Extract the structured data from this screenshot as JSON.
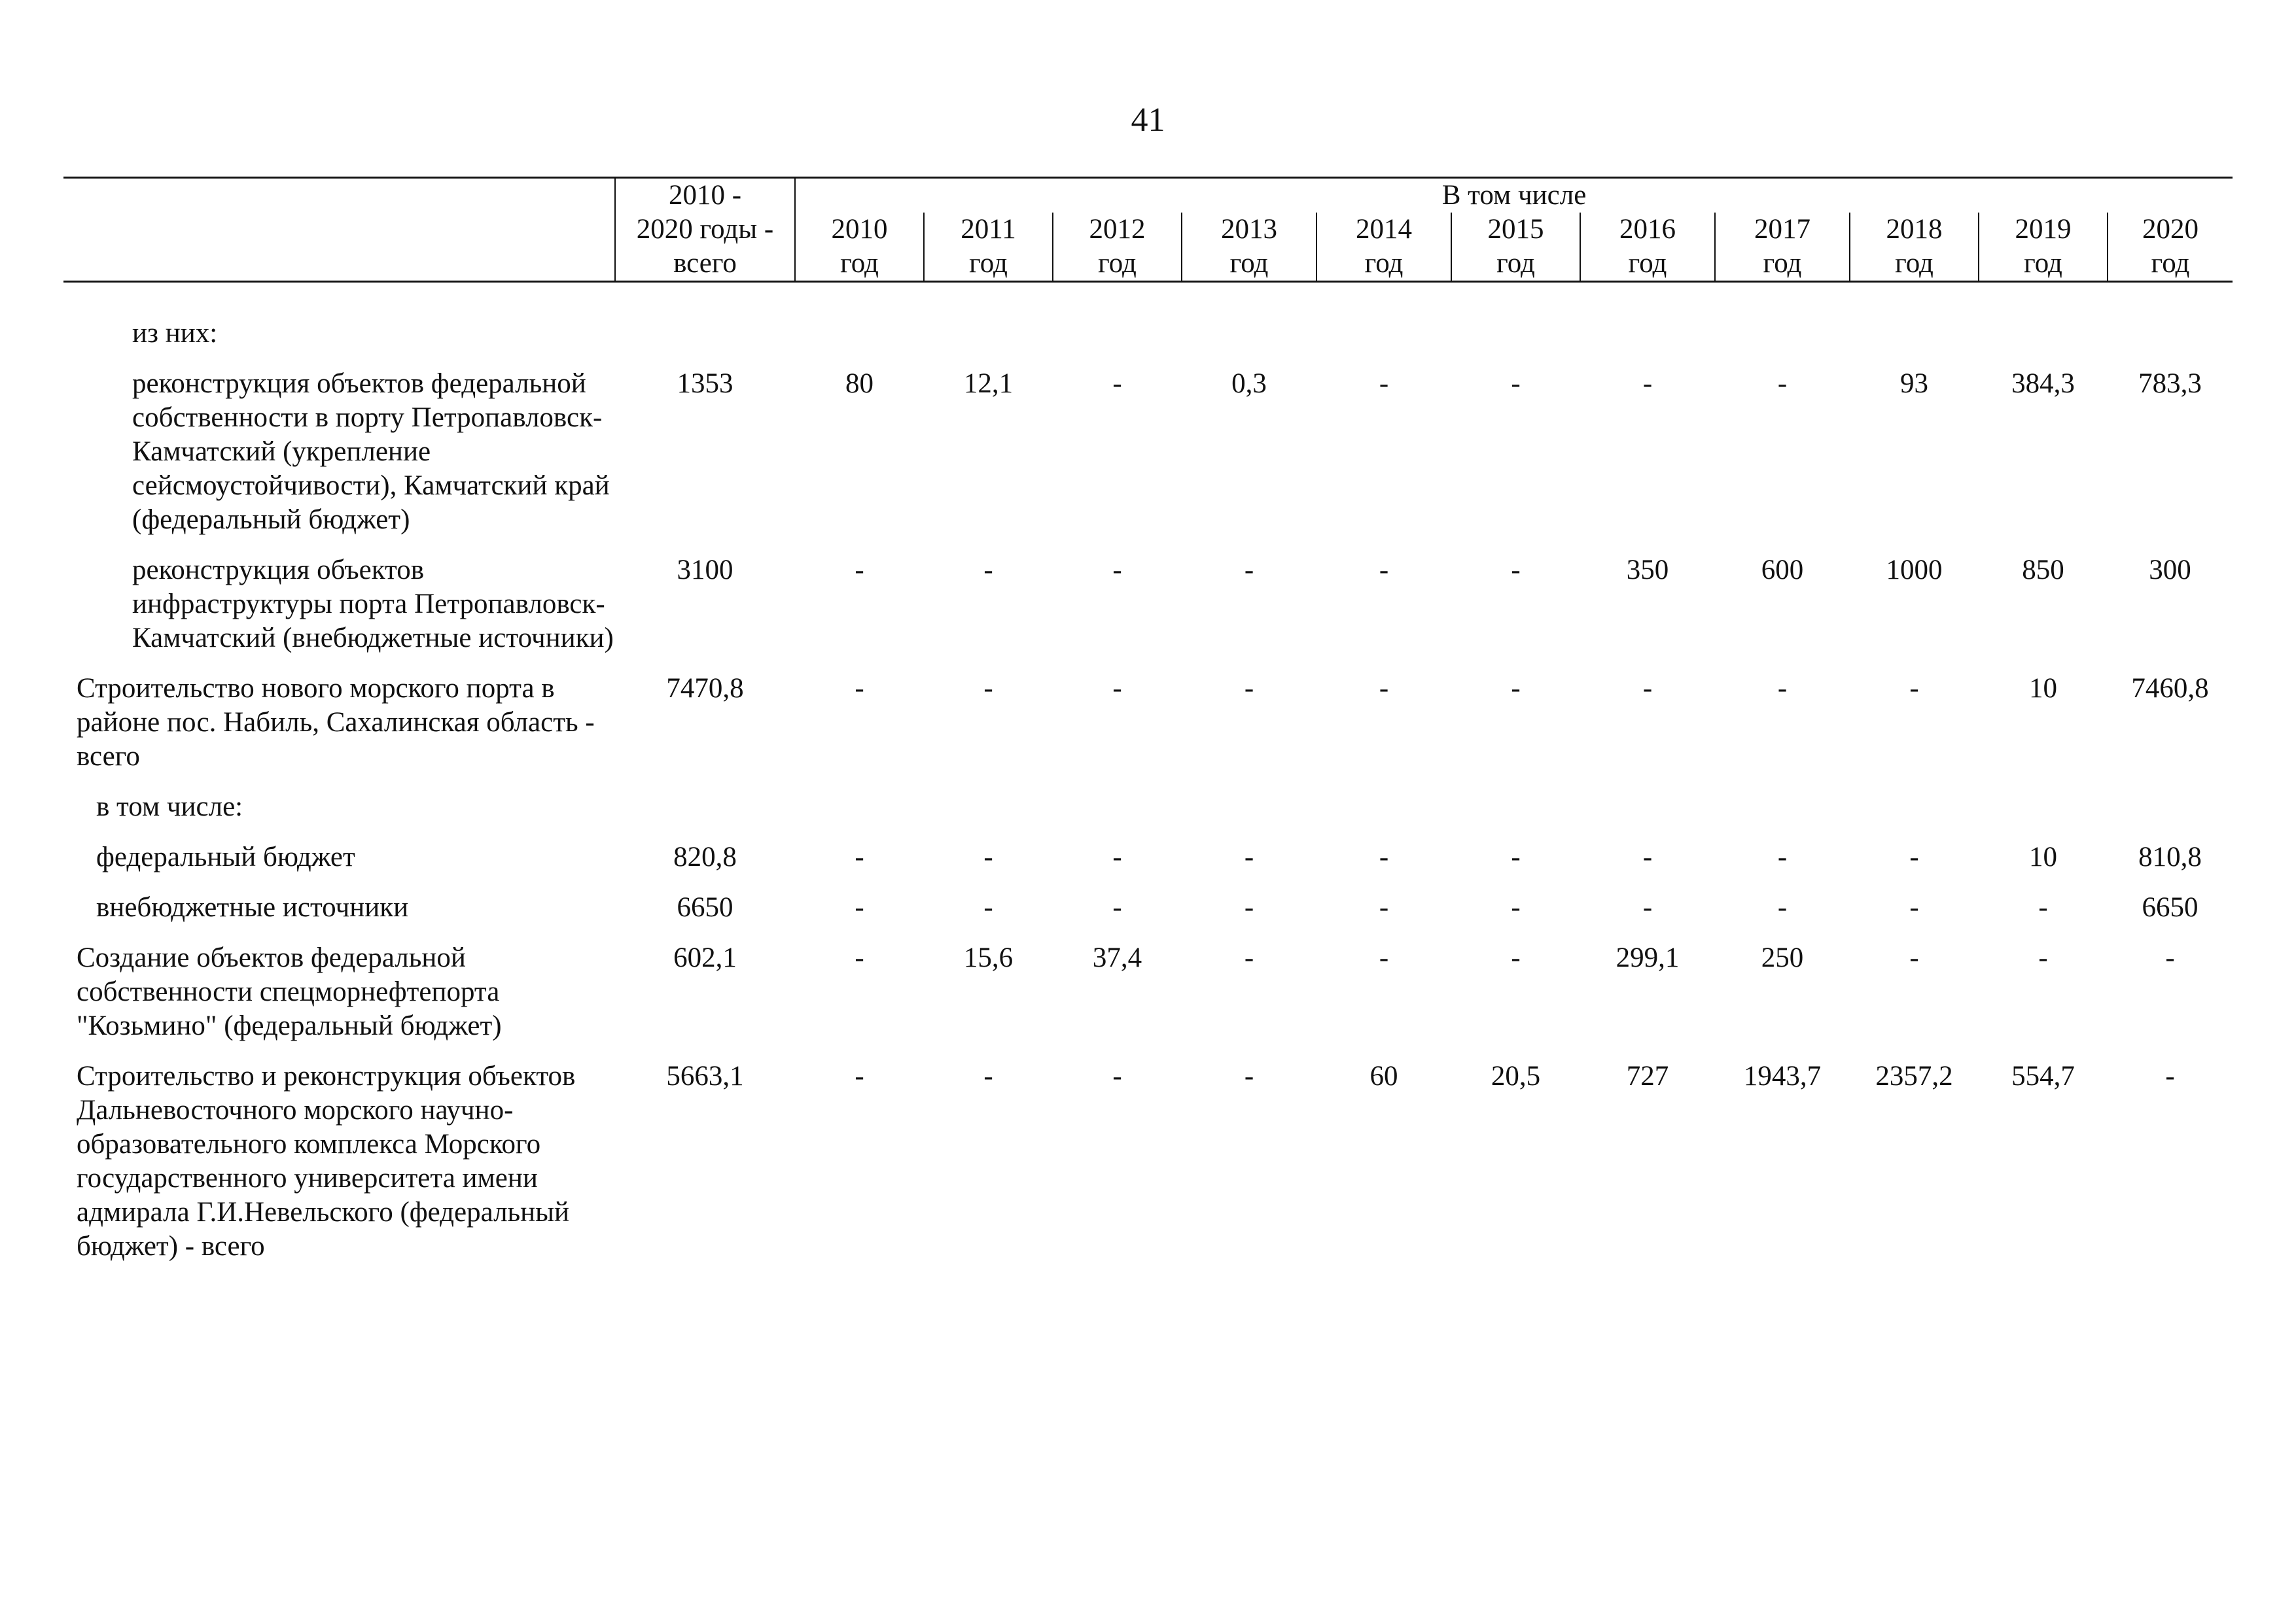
{
  "page_number": "41",
  "header": {
    "total_label": [
      "2010 -",
      "2020 годы -",
      "всего"
    ],
    "group_label": "В том числе",
    "years": [
      [
        "2010",
        "год"
      ],
      [
        "2011",
        "год"
      ],
      [
        "2012",
        "год"
      ],
      [
        "2013",
        "год"
      ],
      [
        "2014",
        "год"
      ],
      [
        "2015",
        "год"
      ],
      [
        "2016",
        "год"
      ],
      [
        "2017",
        "год"
      ],
      [
        "2018",
        "год"
      ],
      [
        "2019",
        "год"
      ],
      [
        "2020",
        "год"
      ]
    ]
  },
  "rows": [
    {
      "indent": 2,
      "label": "из них:",
      "total": "",
      "values": [
        "",
        "",
        "",
        "",
        "",
        "",
        "",
        "",
        "",
        "",
        ""
      ]
    },
    {
      "indent": 2,
      "label": "реконструкция объектов федеральной собственности в порту Петропавловск-Камчатский (укрепление сейсмоустойчивости), Камчатский край (федеральный бюджет)",
      "total": "1353",
      "values": [
        "80",
        "12,1",
        "-",
        "0,3",
        "-",
        "-",
        "-",
        "-",
        "93",
        "384,3",
        "783,3"
      ]
    },
    {
      "indent": 2,
      "label": "реконструкция объектов инфраструктуры порта Петропавловск-Камчатский (внебюджетные источники)",
      "total": "3100",
      "values": [
        "-",
        "-",
        "-",
        "-",
        "-",
        "-",
        "350",
        "600",
        "1000",
        "850",
        "300"
      ]
    },
    {
      "indent": 0,
      "label": "Строительство нового морского порта в районе пос. Набиль, Сахалинская область - всего",
      "total": "7470,8",
      "values": [
        "-",
        "-",
        "-",
        "-",
        "-",
        "-",
        "-",
        "-",
        "-",
        "10",
        "7460,8"
      ]
    },
    {
      "indent": 1,
      "label": "в том числе:",
      "total": "",
      "values": [
        "",
        "",
        "",
        "",
        "",
        "",
        "",
        "",
        "",
        "",
        ""
      ]
    },
    {
      "indent": 1,
      "label": "федеральный бюджет",
      "total": "820,8",
      "values": [
        "-",
        "-",
        "-",
        "-",
        "-",
        "-",
        "-",
        "-",
        "-",
        "10",
        "810,8"
      ]
    },
    {
      "indent": 1,
      "label": "внебюджетные источники",
      "total": "6650",
      "values": [
        "-",
        "-",
        "-",
        "-",
        "-",
        "-",
        "-",
        "-",
        "-",
        "-",
        "6650"
      ]
    },
    {
      "indent": 0,
      "label": "Создание объектов федеральной собственности спецморнефтепорта \"Козьмино\" (федеральный бюджет)",
      "total": "602,1",
      "values": [
        "-",
        "15,6",
        "37,4",
        "-",
        "-",
        "-",
        "299,1",
        "250",
        "-",
        "-",
        "-"
      ]
    },
    {
      "indent": 0,
      "label": "Строительство и реконструкция объектов Дальневосточного морского научно-образовательного комплекса Морского государственного университета имени адмирала Г.И.Невельского (федеральный бюджет) - всего",
      "total": "5663,1",
      "values": [
        "-",
        "-",
        "-",
        "-",
        "60",
        "20,5",
        "727",
        "1943,7",
        "2357,2",
        "554,7",
        "-"
      ]
    }
  ]
}
